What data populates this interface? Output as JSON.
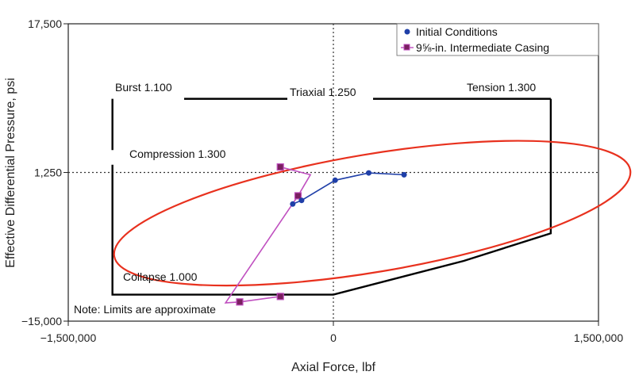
{
  "chart_data": {
    "type": "line",
    "title": "",
    "xlabel": "Axial Force, lbf",
    "ylabel": "Effective Differential Pressure, psi",
    "xlim": [
      -1500000,
      1500000
    ],
    "ylim": [
      -15000,
      17500
    ],
    "x_ticks": [
      {
        "value": -1500000,
        "label": "−1,500,000"
      },
      {
        "value": 0,
        "label": "0"
      },
      {
        "value": 1500000,
        "label": "1,500,000"
      }
    ],
    "y_ticks": [
      {
        "value": 17500,
        "label": "17,500"
      },
      {
        "value": 1250,
        "label": "1,250"
      },
      {
        "value": -15000,
        "label": "−15,000"
      }
    ],
    "reference_lines": {
      "x": 0,
      "y": 1250,
      "style": "dotted"
    },
    "legend_position": "top-right",
    "series": [
      {
        "name": "Initial Conditions",
        "color": "#1f3fa8",
        "marker": "circle",
        "x": [
          -230000,
          -180000,
          10000,
          200000,
          400000
        ],
        "y": [
          -2200,
          -1800,
          400,
          1200,
          1000
        ]
      },
      {
        "name": "9⅝-in. Intermediate Casing",
        "color": "#c050c0",
        "marker_fill": "#7a2060",
        "marker": "square",
        "x": [
          -300000,
          -130000,
          -200000,
          -610000,
          -530000,
          -300000,
          -300000
        ],
        "y": [
          1850,
          1000,
          -1300,
          -13000,
          -12900,
          -12300,
          -12300
        ],
        "marker_x": [
          -300000,
          -200000,
          -530000,
          -300000
        ],
        "marker_y": [
          1850,
          -1300,
          -12900,
          -12300
        ]
      }
    ],
    "ellipse": {
      "name": "Triaxial 1.250",
      "color": "#e8311e",
      "center": [
        220000,
        -3200
      ],
      "semi_axis_x": 1480000,
      "semi_axis_y": 9200,
      "rotation_deg": -9.5
    },
    "envelope": {
      "color": "#000000",
      "left_x": -1250000,
      "right_x": 1230000,
      "top_y": 9300,
      "bottom_left_y": -12100,
      "bottom_mid_x": 0,
      "bottom_right_y": -5400,
      "gap_y": [
        2100,
        3700
      ]
    },
    "annotations": {
      "burst": "Burst 1.100",
      "triaxial": "Triaxial 1.250",
      "tension": "Tension 1.300",
      "compression": "Compression 1.300",
      "collapse": "Collapse 1.000",
      "note": "Note: Limits are approximate"
    }
  }
}
